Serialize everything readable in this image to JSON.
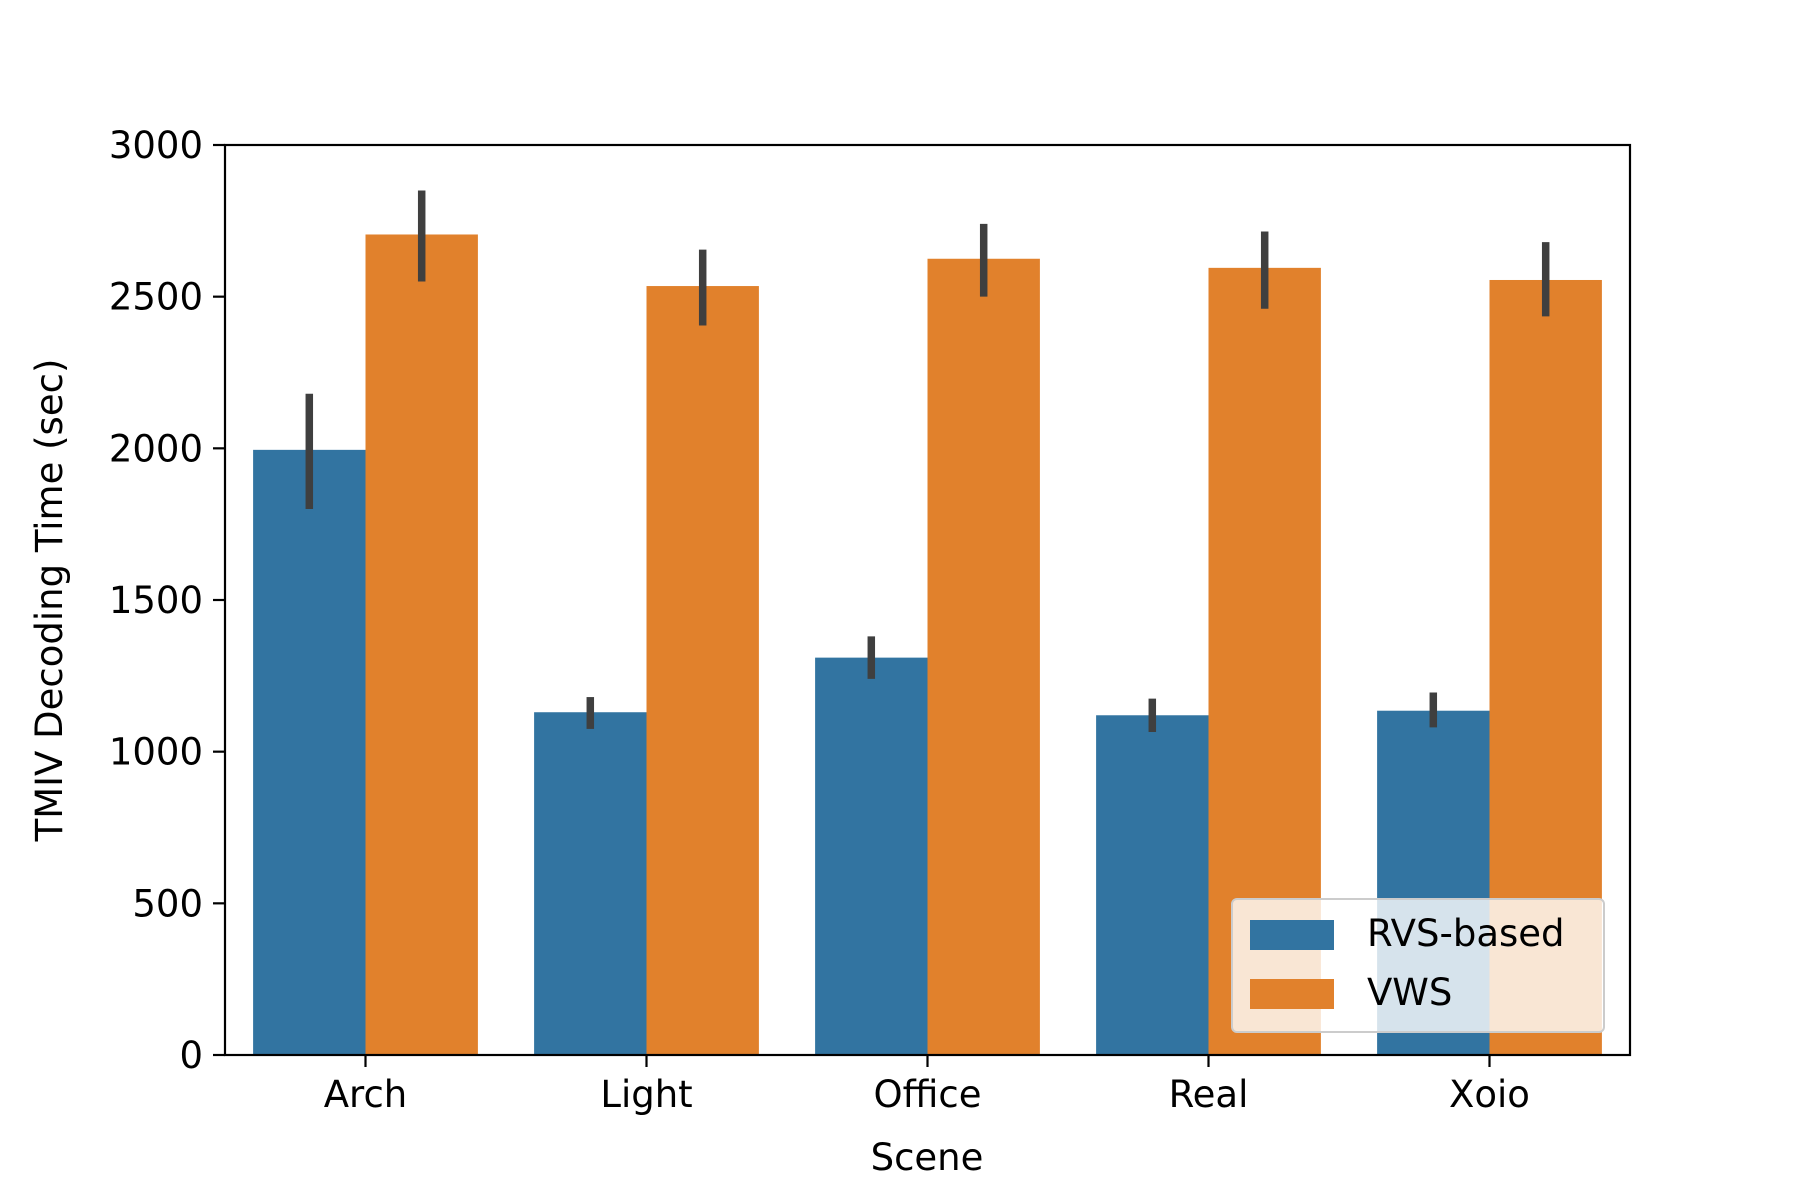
{
  "chart_data": {
    "type": "bar",
    "title": "",
    "xlabel": "Scene",
    "ylabel": "TMIV Decoding Time (sec)",
    "categories": [
      "Arch",
      "Light",
      "Office",
      "Real",
      "Xoio"
    ],
    "ylim": [
      0,
      3000
    ],
    "yticks": [
      0,
      500,
      1000,
      1500,
      2000,
      2500,
      3000
    ],
    "grid": false,
    "legend_position": "bottom-right",
    "series": [
      {
        "name": "RVS-based",
        "color": "#3274a1",
        "values": [
          1995,
          1130,
          1310,
          1120,
          1135
        ],
        "error_low": [
          1800,
          1075,
          1240,
          1065,
          1080
        ],
        "error_high": [
          2180,
          1180,
          1380,
          1175,
          1195
        ]
      },
      {
        "name": "VWS",
        "color": "#e1812c",
        "values": [
          2705,
          2535,
          2625,
          2595,
          2555
        ],
        "error_low": [
          2550,
          2405,
          2500,
          2460,
          2435
        ],
        "error_high": [
          2850,
          2655,
          2740,
          2715,
          2680
        ]
      }
    ],
    "error_bar_color": "#3f3f3f"
  }
}
